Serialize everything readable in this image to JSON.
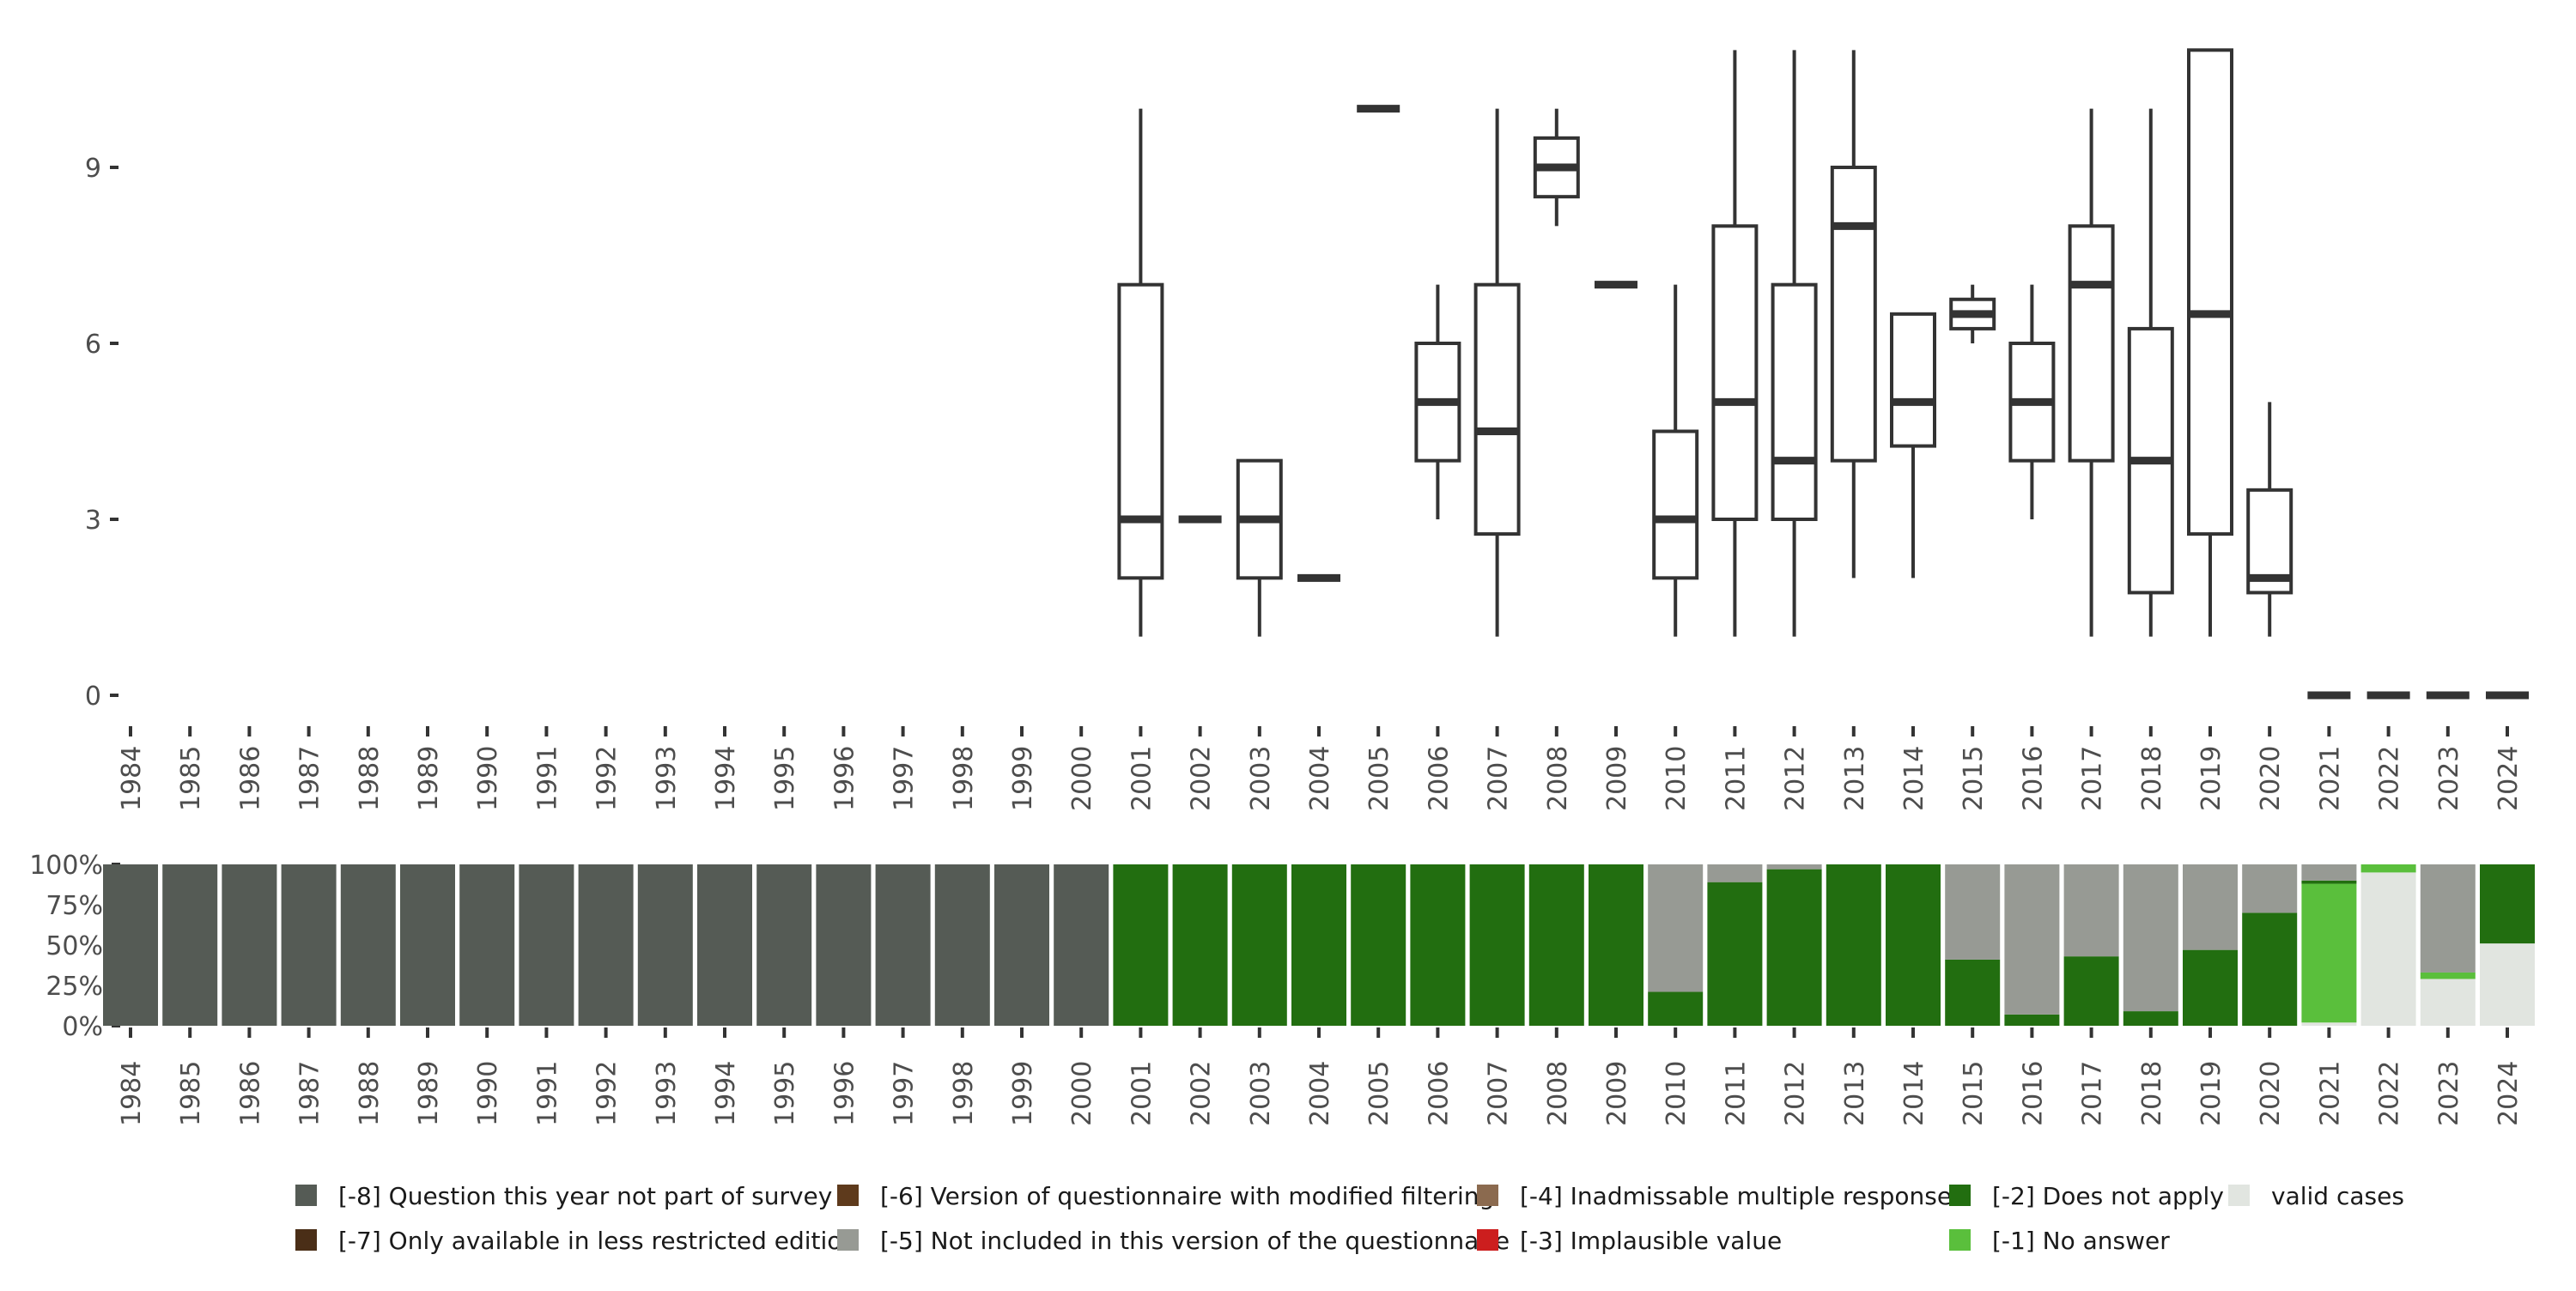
{
  "chart_data": [
    {
      "type": "boxplot",
      "categories": [
        "1984",
        "1985",
        "1986",
        "1987",
        "1988",
        "1989",
        "1990",
        "1991",
        "1992",
        "1993",
        "1994",
        "1995",
        "1996",
        "1997",
        "1998",
        "1999",
        "2000",
        "2001",
        "2002",
        "2003",
        "2004",
        "2005",
        "2006",
        "2007",
        "2008",
        "2009",
        "2010",
        "2011",
        "2012",
        "2013",
        "2014",
        "2015",
        "2016",
        "2017",
        "2018",
        "2019",
        "2020",
        "2021",
        "2022",
        "2023",
        "2024"
      ],
      "y_ticks": [
        "0",
        "3",
        "6",
        "9"
      ],
      "ylim": [
        0,
        11
      ],
      "boxes": [
        {
          "year": "2001",
          "min": 1,
          "q1": 2,
          "median": 3,
          "q3": 7,
          "max": 10
        },
        {
          "year": "2002",
          "min": 3,
          "q1": 3,
          "median": 3,
          "q3": 3,
          "max": 3
        },
        {
          "year": "2003",
          "min": 1,
          "q1": 2,
          "median": 3,
          "q3": 4,
          "max": 4
        },
        {
          "year": "2004",
          "min": 2,
          "q1": 2,
          "median": 2,
          "q3": 2,
          "max": 2
        },
        {
          "year": "2005",
          "min": 10,
          "q1": 10,
          "median": 10,
          "q3": 10,
          "max": 10
        },
        {
          "year": "2006",
          "min": 3,
          "q1": 4,
          "median": 5,
          "q3": 6,
          "max": 7
        },
        {
          "year": "2007",
          "min": 1,
          "q1": 2.75,
          "median": 4.5,
          "q3": 7,
          "max": 10
        },
        {
          "year": "2008",
          "min": 8,
          "q1": 8.5,
          "median": 9,
          "q3": 9.5,
          "max": 10
        },
        {
          "year": "2009",
          "min": 7,
          "q1": 7,
          "median": 7,
          "q3": 7,
          "max": 7
        },
        {
          "year": "2010",
          "min": 1,
          "q1": 2,
          "median": 3,
          "q3": 4.5,
          "max": 7
        },
        {
          "year": "2011",
          "min": 1,
          "q1": 3,
          "median": 5,
          "q3": 8,
          "max": 11
        },
        {
          "year": "2012",
          "min": 1,
          "q1": 3,
          "median": 4,
          "q3": 7,
          "max": 11
        },
        {
          "year": "2013",
          "min": 2,
          "q1": 4,
          "median": 8,
          "q3": 9,
          "max": 11
        },
        {
          "year": "2014",
          "min": 2,
          "q1": 4.25,
          "median": 5,
          "q3": 6.5,
          "max": 6.5
        },
        {
          "year": "2015",
          "min": 6,
          "q1": 6.25,
          "median": 6.5,
          "q3": 6.75,
          "max": 7
        },
        {
          "year": "2016",
          "min": 3,
          "q1": 4,
          "median": 5,
          "q3": 6,
          "max": 7
        },
        {
          "year": "2017",
          "min": 1,
          "q1": 4,
          "median": 7,
          "q3": 8,
          "max": 10
        },
        {
          "year": "2018",
          "min": 1,
          "q1": 1.75,
          "median": 4,
          "q3": 6.25,
          "max": 10
        },
        {
          "year": "2019",
          "min": 1,
          "q1": 2.75,
          "median": 6.5,
          "q3": 11,
          "max": 11
        },
        {
          "year": "2020",
          "min": 1,
          "q1": 1.75,
          "median": 2,
          "q3": 3.5,
          "max": 5
        },
        {
          "year": "2021",
          "min": 0,
          "q1": 0,
          "median": 0,
          "q3": 0,
          "max": 0
        },
        {
          "year": "2022",
          "min": 0,
          "q1": 0,
          "median": 0,
          "q3": 0,
          "max": 0
        },
        {
          "year": "2023",
          "min": 0,
          "q1": 0,
          "median": 0,
          "q3": 0,
          "max": 0
        },
        {
          "year": "2024",
          "min": 0,
          "q1": 0,
          "median": 0,
          "q3": 0,
          "max": 0
        }
      ]
    },
    {
      "type": "bar",
      "stacked": true,
      "categories": [
        "1984",
        "1985",
        "1986",
        "1987",
        "1988",
        "1989",
        "1990",
        "1991",
        "1992",
        "1993",
        "1994",
        "1995",
        "1996",
        "1997",
        "1998",
        "1999",
        "2000",
        "2001",
        "2002",
        "2003",
        "2004",
        "2005",
        "2006",
        "2007",
        "2008",
        "2009",
        "2010",
        "2011",
        "2012",
        "2013",
        "2014",
        "2015",
        "2016",
        "2017",
        "2018",
        "2019",
        "2020",
        "2021",
        "2022",
        "2023",
        "2024"
      ],
      "y_ticks": [
        "0%",
        "25%",
        "50%",
        "75%",
        "100%"
      ],
      "ylim": [
        0,
        100
      ],
      "series": [
        {
          "name": "valid cases",
          "color": "#e1e5e0",
          "values": [
            0,
            0,
            0,
            0,
            0,
            0,
            0,
            0,
            0,
            0,
            0,
            0,
            0,
            0,
            0,
            0,
            0,
            0,
            0,
            0,
            0,
            0,
            0,
            0,
            0,
            0,
            0,
            0,
            0,
            0,
            0,
            0,
            0,
            0,
            0,
            0,
            0,
            2,
            95,
            29,
            51
          ]
        },
        {
          "name": "[-1] No answer",
          "color": "#5abf3c",
          "values": [
            0,
            0,
            0,
            0,
            0,
            0,
            0,
            0,
            0,
            0,
            0,
            0,
            0,
            0,
            0,
            0,
            0,
            0,
            0,
            0,
            0,
            0,
            0,
            0,
            0,
            0,
            0,
            0,
            0,
            0,
            0,
            0,
            0,
            0,
            0,
            0,
            0,
            86,
            5,
            4,
            0
          ]
        },
        {
          "name": "[-2] Does not apply",
          "color": "#226e10",
          "values": [
            0,
            0,
            0,
            0,
            0,
            0,
            0,
            0,
            0,
            0,
            0,
            0,
            0,
            0,
            0,
            0,
            0,
            100,
            100,
            100,
            100,
            100,
            100,
            100,
            100,
            100,
            21,
            89,
            97,
            100,
            100,
            41,
            7,
            43,
            9,
            47,
            70,
            2,
            0,
            0,
            49
          ]
        },
        {
          "name": "[-3] Implausible value",
          "color": "#cc1e1e",
          "values": [
            0,
            0,
            0,
            0,
            0,
            0,
            0,
            0,
            0,
            0,
            0,
            0,
            0,
            0,
            0,
            0,
            0,
            0,
            0,
            0,
            0,
            0,
            0,
            0,
            0,
            0,
            0,
            0,
            0,
            0,
            0,
            0,
            0,
            0,
            0,
            0,
            0,
            0,
            0,
            0,
            0
          ]
        },
        {
          "name": "[-4] Inadmissable multiple response",
          "color": "#8b6a4f",
          "values": [
            0,
            0,
            0,
            0,
            0,
            0,
            0,
            0,
            0,
            0,
            0,
            0,
            0,
            0,
            0,
            0,
            0,
            0,
            0,
            0,
            0,
            0,
            0,
            0,
            0,
            0,
            0,
            0,
            0,
            0,
            0,
            0,
            0,
            0,
            0,
            0,
            0,
            0,
            0,
            0,
            0
          ]
        },
        {
          "name": "[-5] Not included in this version of the questionnaire",
          "color": "#979a94",
          "values": [
            0,
            0,
            0,
            0,
            0,
            0,
            0,
            0,
            0,
            0,
            0,
            0,
            0,
            0,
            0,
            0,
            0,
            0,
            0,
            0,
            0,
            0,
            0,
            0,
            0,
            0,
            79,
            11,
            3,
            0,
            0,
            59,
            93,
            57,
            91,
            53,
            30,
            10,
            0,
            67,
            0
          ]
        },
        {
          "name": "[-6] Version of questionnaire with modified filtering",
          "color": "#5e3a1c",
          "values": [
            0,
            0,
            0,
            0,
            0,
            0,
            0,
            0,
            0,
            0,
            0,
            0,
            0,
            0,
            0,
            0,
            0,
            0,
            0,
            0,
            0,
            0,
            0,
            0,
            0,
            0,
            0,
            0,
            0,
            0,
            0,
            0,
            0,
            0,
            0,
            0,
            0,
            0,
            0,
            0,
            0
          ]
        },
        {
          "name": "[-7] Only available in less restricted edition",
          "color": "#4a2e17",
          "values": [
            0,
            0,
            0,
            0,
            0,
            0,
            0,
            0,
            0,
            0,
            0,
            0,
            0,
            0,
            0,
            0,
            0,
            0,
            0,
            0,
            0,
            0,
            0,
            0,
            0,
            0,
            0,
            0,
            0,
            0,
            0,
            0,
            0,
            0,
            0,
            0,
            0,
            0,
            0,
            0,
            0
          ]
        },
        {
          "name": "[-8] Question this year not part of survey",
          "color": "#555b55",
          "values": [
            100,
            100,
            100,
            100,
            100,
            100,
            100,
            100,
            100,
            100,
            100,
            100,
            100,
            100,
            100,
            100,
            100,
            0,
            0,
            0,
            0,
            0,
            0,
            0,
            0,
            0,
            0,
            0,
            0,
            0,
            0,
            0,
            0,
            0,
            0,
            0,
            0,
            0,
            0,
            0,
            0
          ]
        }
      ]
    }
  ],
  "legend": {
    "items": [
      {
        "label": "[-8] Question this year not part of survey",
        "color": "#555b55"
      },
      {
        "label": "[-7] Only available in less restricted edition",
        "color": "#4a2e17"
      },
      {
        "label": "[-6] Version of questionnaire with modified filtering",
        "color": "#5e3a1c"
      },
      {
        "label": "[-5] Not included in this version of the questionnaire",
        "color": "#979a94"
      },
      {
        "label": "[-4] Inadmissable multiple response",
        "color": "#8b6a4f"
      },
      {
        "label": "[-3] Implausible value",
        "color": "#cc1e1e"
      },
      {
        "label": "[-2] Does not apply",
        "color": "#226e10"
      },
      {
        "label": "[-1] No answer",
        "color": "#5abf3c"
      },
      {
        "label": "valid cases",
        "color": "#e1e5e0"
      }
    ]
  }
}
